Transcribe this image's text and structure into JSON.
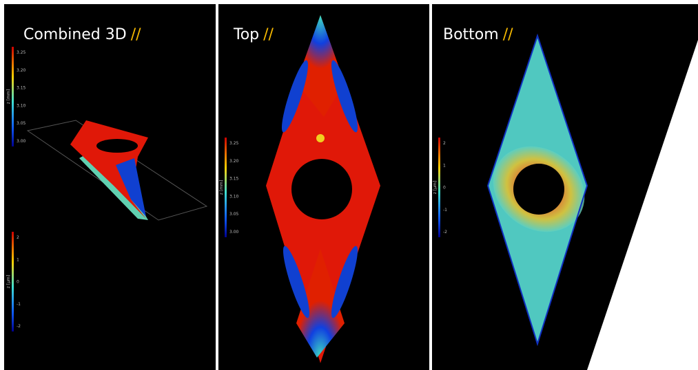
{
  "panels": [
    {
      "title": "Combined 3D",
      "mark": "//"
    },
    {
      "title": "Top",
      "mark": "//"
    },
    {
      "title": "Bottom",
      "mark": "//"
    }
  ],
  "colorbars": [
    {
      "label": "z [mm]",
      "ticks": [
        "3.25",
        "3.20",
        "3.15",
        "3.10",
        "3.05",
        "3.00"
      ]
    },
    {
      "label": "z [µm]",
      "ticks": [
        "2",
        "1",
        "0",
        "-1",
        "-2"
      ]
    },
    {
      "label": "z [mm]",
      "ticks": [
        "3.25",
        "3.20",
        "3.15",
        "3.10",
        "3.05",
        "3.00"
      ]
    },
    {
      "label": "z [µm]",
      "ticks": [
        "2",
        "1",
        "0",
        "-1",
        "-2"
      ]
    }
  ]
}
